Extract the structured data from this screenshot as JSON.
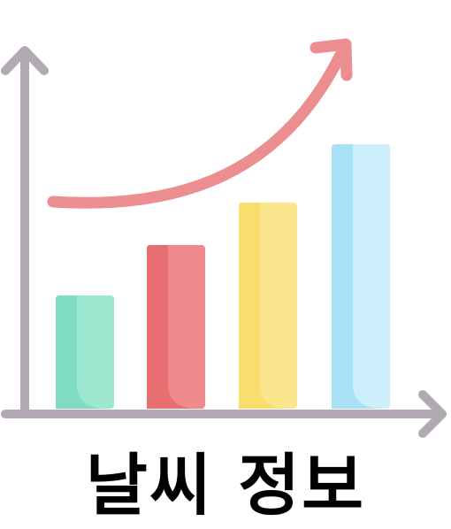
{
  "caption": "날씨 정보",
  "illustration": {
    "icon": "rising-bar-chart-icon",
    "colors": {
      "axis": "#b1aab2",
      "trend_arrow": "#ec8d8f",
      "bar_1_dark": "#7fdcc0",
      "bar_1_light": "#9de6cf",
      "bar_2_dark": "#e76f72",
      "bar_2_light": "#ef8b8c",
      "bar_3_dark": "#f8df6d",
      "bar_3_light": "#fae68d",
      "bar_4_dark": "#a8e1f5",
      "bar_4_light": "#cdeefb"
    },
    "bar_levels": [
      0.27,
      0.39,
      0.49,
      0.63
    ]
  }
}
